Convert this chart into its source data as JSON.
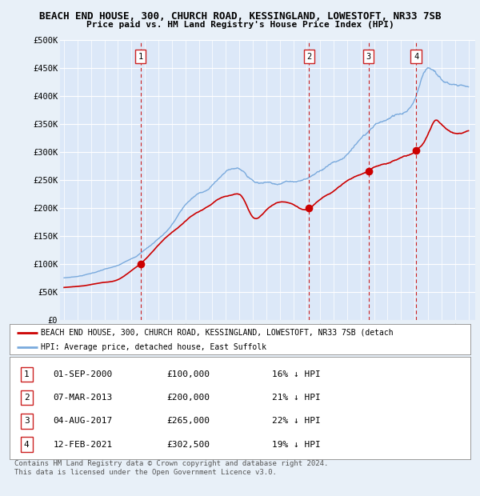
{
  "title1": "BEACH END HOUSE, 300, CHURCH ROAD, KESSINGLAND, LOWESTOFT, NR33 7SB",
  "title2": "Price paid vs. HM Land Registry's House Price Index (HPI)",
  "ylim": [
    0,
    500000
  ],
  "yticks": [
    0,
    50000,
    100000,
    150000,
    200000,
    250000,
    300000,
    350000,
    400000,
    450000,
    500000
  ],
  "ytick_labels": [
    "£0",
    "£50K",
    "£100K",
    "£150K",
    "£200K",
    "£250K",
    "£300K",
    "£350K",
    "£400K",
    "£450K",
    "£500K"
  ],
  "background_color": "#e8f0f8",
  "plot_bg": "#dce8f8",
  "sale_dates": [
    2000.667,
    2013.181,
    2017.583,
    2021.12
  ],
  "sale_prices": [
    100000,
    200000,
    265000,
    302500
  ],
  "sale_labels": [
    "1",
    "2",
    "3",
    "4"
  ],
  "legend_red_label": "BEACH END HOUSE, 300, CHURCH ROAD, KESSINGLAND, LOWESTOFT, NR33 7SB (detach",
  "legend_blue_label": "HPI: Average price, detached house, East Suffolk",
  "table_rows": [
    [
      "1",
      "01-SEP-2000",
      "£100,000",
      "16% ↓ HPI"
    ],
    [
      "2",
      "07-MAR-2013",
      "£200,000",
      "21% ↓ HPI"
    ],
    [
      "3",
      "04-AUG-2017",
      "£265,000",
      "22% ↓ HPI"
    ],
    [
      "4",
      "12-FEB-2021",
      "£302,500",
      "19% ↓ HPI"
    ]
  ],
  "footnote": "Contains HM Land Registry data © Crown copyright and database right 2024.\nThis data is licensed under the Open Government Licence v3.0.",
  "red_color": "#cc0000",
  "blue_color": "#7aaadd",
  "vline_color": "#cc2222",
  "grid_color": "#c0cfe0",
  "hpi_key_years": [
    1995.0,
    1996.0,
    1997.0,
    1998.0,
    1999.0,
    2000.0,
    2001.0,
    2002.0,
    2003.0,
    2004.0,
    2005.0,
    2006.0,
    2007.0,
    2008.0,
    2009.0,
    2010.0,
    2011.0,
    2012.0,
    2013.0,
    2014.0,
    2015.0,
    2016.0,
    2017.0,
    2018.0,
    2019.0,
    2020.0,
    2021.0,
    2022.0,
    2023.0,
    2024.0,
    2025.0
  ],
  "hpi_key_values": [
    75000,
    78000,
    83000,
    90000,
    97000,
    110000,
    125000,
    145000,
    170000,
    205000,
    225000,
    240000,
    265000,
    270000,
    250000,
    245000,
    245000,
    248000,
    252000,
    268000,
    282000,
    295000,
    320000,
    345000,
    358000,
    370000,
    395000,
    450000,
    430000,
    420000,
    415000
  ],
  "red_key_years": [
    1995.0,
    1996.0,
    1997.0,
    1998.0,
    1999.0,
    2000.0,
    2000.667,
    2001.5,
    2002.5,
    2003.5,
    2004.5,
    2005.5,
    2006.5,
    2007.5,
    2008.2,
    2009.0,
    2010.0,
    2011.0,
    2012.0,
    2013.0,
    2013.181,
    2014.0,
    2015.0,
    2016.0,
    2017.0,
    2017.583,
    2018.0,
    2019.0,
    2020.0,
    2021.0,
    2021.12,
    2022.0,
    2022.5,
    2023.0,
    2023.5,
    2024.0,
    2025.0
  ],
  "red_key_values": [
    58000,
    60000,
    63000,
    67000,
    72000,
    88000,
    100000,
    120000,
    145000,
    165000,
    185000,
    200000,
    215000,
    225000,
    220000,
    185000,
    195000,
    210000,
    205000,
    198000,
    200000,
    215000,
    230000,
    248000,
    258000,
    265000,
    272000,
    280000,
    290000,
    300000,
    302500,
    330000,
    355000,
    350000,
    340000,
    335000,
    338000
  ]
}
